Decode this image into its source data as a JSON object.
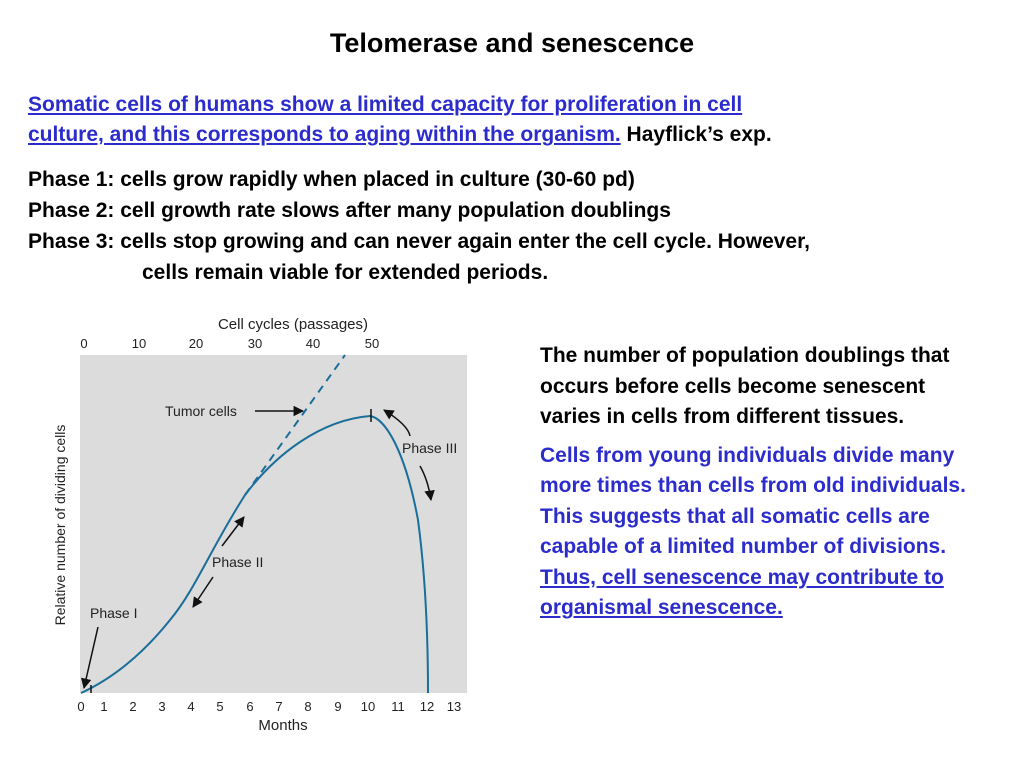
{
  "title": "Telomerase and senescence",
  "intro": {
    "link_line1": "Somatic cells of humans show a limited capacity for proliferation in cell",
    "link_line2": "culture, and this corresponds to aging within the organism.",
    "suffix": " Hayflick’s exp."
  },
  "phases": [
    "Phase 1: cells grow rapidly when placed in culture (30-60 pd)",
    "Phase 2: cell growth rate slows after many population doublings",
    "Phase 3: cells stop growing and can never again enter the cell cycle. However,"
  ],
  "phase3_cont": "cells remain viable for extended periods.",
  "right": {
    "p1": "The number of population doublings that occurs before cells become senescent varies in cells from different tissues.",
    "p2_plain": "Cells from young individuals divide many more times than cells from old individuals. This suggests that all somatic cells are capable of a limited number of divisions. ",
    "p2_underlined": "Thus, cell senescence may contribute to organismal senescence."
  },
  "figure": {
    "top_axis_label": "Cell cycles (passages)",
    "top_ticks": [
      "0",
      "10",
      "20",
      "30",
      "40",
      "50"
    ],
    "x_label": "Months",
    "x_ticks": [
      "0",
      "1",
      "2",
      "3",
      "4",
      "5",
      "6",
      "7",
      "8",
      "9",
      "10",
      "11",
      "12",
      "13"
    ],
    "y_label": "Relative number of dividing cells",
    "annotations": {
      "tumor": "Tumor cells",
      "phase1": "Phase I",
      "phase2": "Phase II",
      "phase3": "Phase III"
    },
    "colors": {
      "background": "#dcdcdc",
      "curve": "#1a6e9a",
      "arrow": "#111111"
    }
  }
}
